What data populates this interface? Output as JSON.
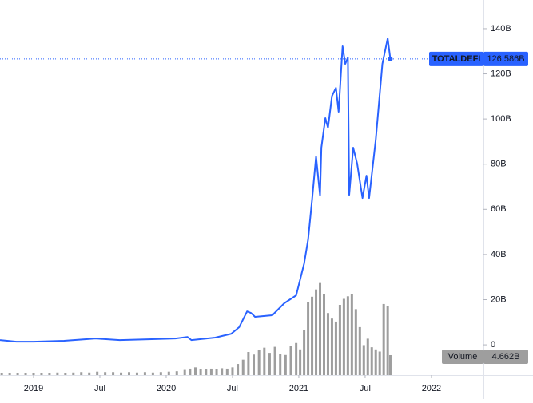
{
  "chart_data": {
    "type": "line",
    "x": [
      2018.747,
      2018.87,
      2019.0,
      2019.23,
      2019.47,
      2019.65,
      2019.89,
      2020.07,
      2020.16,
      2020.19,
      2020.37,
      2020.49,
      2020.55,
      2020.61,
      2020.64,
      2020.67,
      2020.8,
      2020.89,
      2020.98,
      2021.04,
      2021.07,
      2021.1,
      2021.13,
      2021.16,
      2021.17,
      2021.2,
      2021.22,
      2021.25,
      2021.28,
      2021.3,
      2021.33,
      2021.35,
      2021.37,
      2021.38,
      2021.41,
      2021.44,
      2021.48,
      2021.51,
      2021.53,
      2021.58,
      2021.63,
      2021.67,
      2021.69
    ],
    "series": [
      {
        "name": "TOTALDEFI",
        "color": "#2962ff",
        "values": [
          2.1,
          1.4,
          1.4,
          1.8,
          2.8,
          2.1,
          2.5,
          2.8,
          3.5,
          2.1,
          3.2,
          4.9,
          7.8,
          14.8,
          14.1,
          12.4,
          13.1,
          18.4,
          21.9,
          36,
          46.6,
          64.3,
          83.4,
          66.1,
          87.3,
          100.4,
          96.1,
          110.2,
          113.8,
          103.2,
          132.2,
          124.4,
          127.2,
          66.4,
          87.3,
          80.2,
          65,
          74.9,
          65,
          90.8,
          124.4,
          135.7,
          126.586
        ],
        "last_label": "126.586B"
      }
    ],
    "volume": {
      "name": "Volume",
      "color": "#9e9e9e",
      "axis": "y2",
      "last_label": "4.662B",
      "x": [
        2018.76,
        2018.82,
        2018.88,
        2018.94,
        2019.0,
        2019.06,
        2019.12,
        2019.18,
        2019.24,
        2019.3,
        2019.36,
        2019.42,
        2019.48,
        2019.54,
        2019.6,
        2019.66,
        2019.72,
        2019.78,
        2019.84,
        2019.9,
        2019.96,
        2020.02,
        2020.08,
        2020.14,
        2020.18,
        2020.22,
        2020.26,
        2020.3,
        2020.34,
        2020.38,
        2020.42,
        2020.46,
        2020.5,
        2020.54,
        2020.58,
        2020.62,
        2020.66,
        2020.7,
        2020.74,
        2020.78,
        2020.82,
        2020.86,
        2020.9,
        2020.94,
        2020.98,
        2021.01,
        2021.04,
        2021.07,
        2021.1,
        2021.13,
        2021.16,
        2021.19,
        2021.22,
        2021.25,
        2021.28,
        2021.31,
        2021.34,
        2021.37,
        2021.4,
        2021.43,
        2021.46,
        2021.49,
        2021.52,
        2021.55,
        2021.58,
        2021.61,
        2021.64,
        2021.67,
        2021.69
      ],
      "values": [
        0.4,
        0.5,
        0.4,
        0.5,
        0.5,
        0.4,
        0.5,
        0.6,
        0.5,
        0.6,
        0.7,
        0.6,
        0.8,
        0.7,
        0.7,
        0.6,
        0.7,
        0.6,
        0.7,
        0.6,
        0.7,
        0.8,
        0.9,
        1.2,
        1.5,
        1.8,
        1.4,
        1.3,
        1.5,
        1.4,
        1.6,
        1.5,
        1.8,
        2.6,
        3.6,
        5.4,
        4.8,
        5.9,
        6.4,
        5.2,
        6.6,
        5.0,
        4.7,
        6.8,
        7.5,
        6.0,
        10.5,
        17.0,
        18.3,
        20.0,
        21.5,
        19.0,
        14.5,
        13.2,
        12.5,
        16.4,
        17.8,
        18.4,
        19.0,
        15.4,
        11.2,
        7.0,
        8.5,
        6.5,
        6.0,
        5.5,
        16.6,
        16.2,
        4.662
      ]
    },
    "xlim": [
      2018.747,
      2022.392
    ],
    "xticks": [
      {
        "value": 2019,
        "label": "2019"
      },
      {
        "value": 2019.5,
        "label": "Jul"
      },
      {
        "value": 2020,
        "label": "2020"
      },
      {
        "value": 2020.5,
        "label": "Jul"
      },
      {
        "value": 2021,
        "label": "2021"
      },
      {
        "value": 2021.5,
        "label": "Jul"
      },
      {
        "value": 2022,
        "label": "2022"
      }
    ],
    "ylim": [
      -13.4,
      152.7
    ],
    "yticks": [
      {
        "value": 0,
        "label": "0"
      },
      {
        "value": 20,
        "label": "20B"
      },
      {
        "value": 40,
        "label": "40B"
      },
      {
        "value": 60,
        "label": "60B"
      },
      {
        "value": 80,
        "label": "80B"
      },
      {
        "value": 100,
        "label": "100B"
      },
      {
        "value": 120,
        "label": "120B"
      },
      {
        "value": 140,
        "label": "140B"
      }
    ],
    "y2lim": [
      0,
      87.6
    ],
    "grid": false
  }
}
